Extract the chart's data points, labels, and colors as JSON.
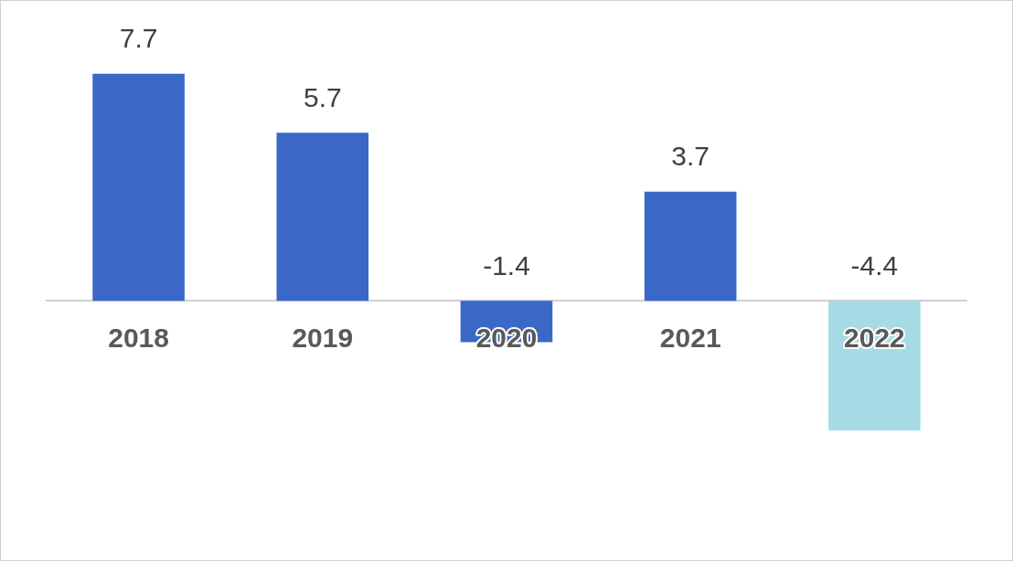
{
  "chart_data": {
    "type": "bar",
    "categories": [
      "2018",
      "2019",
      "2020",
      "2021",
      "2022"
    ],
    "values": [
      7.7,
      5.7,
      -1.4,
      3.7,
      -4.4
    ],
    "colors": [
      "#3a68c6",
      "#3a68c6",
      "#3a68c6",
      "#3a68c6",
      "#a6dbe6"
    ],
    "data_labels": true,
    "grid": false,
    "legend": false
  }
}
